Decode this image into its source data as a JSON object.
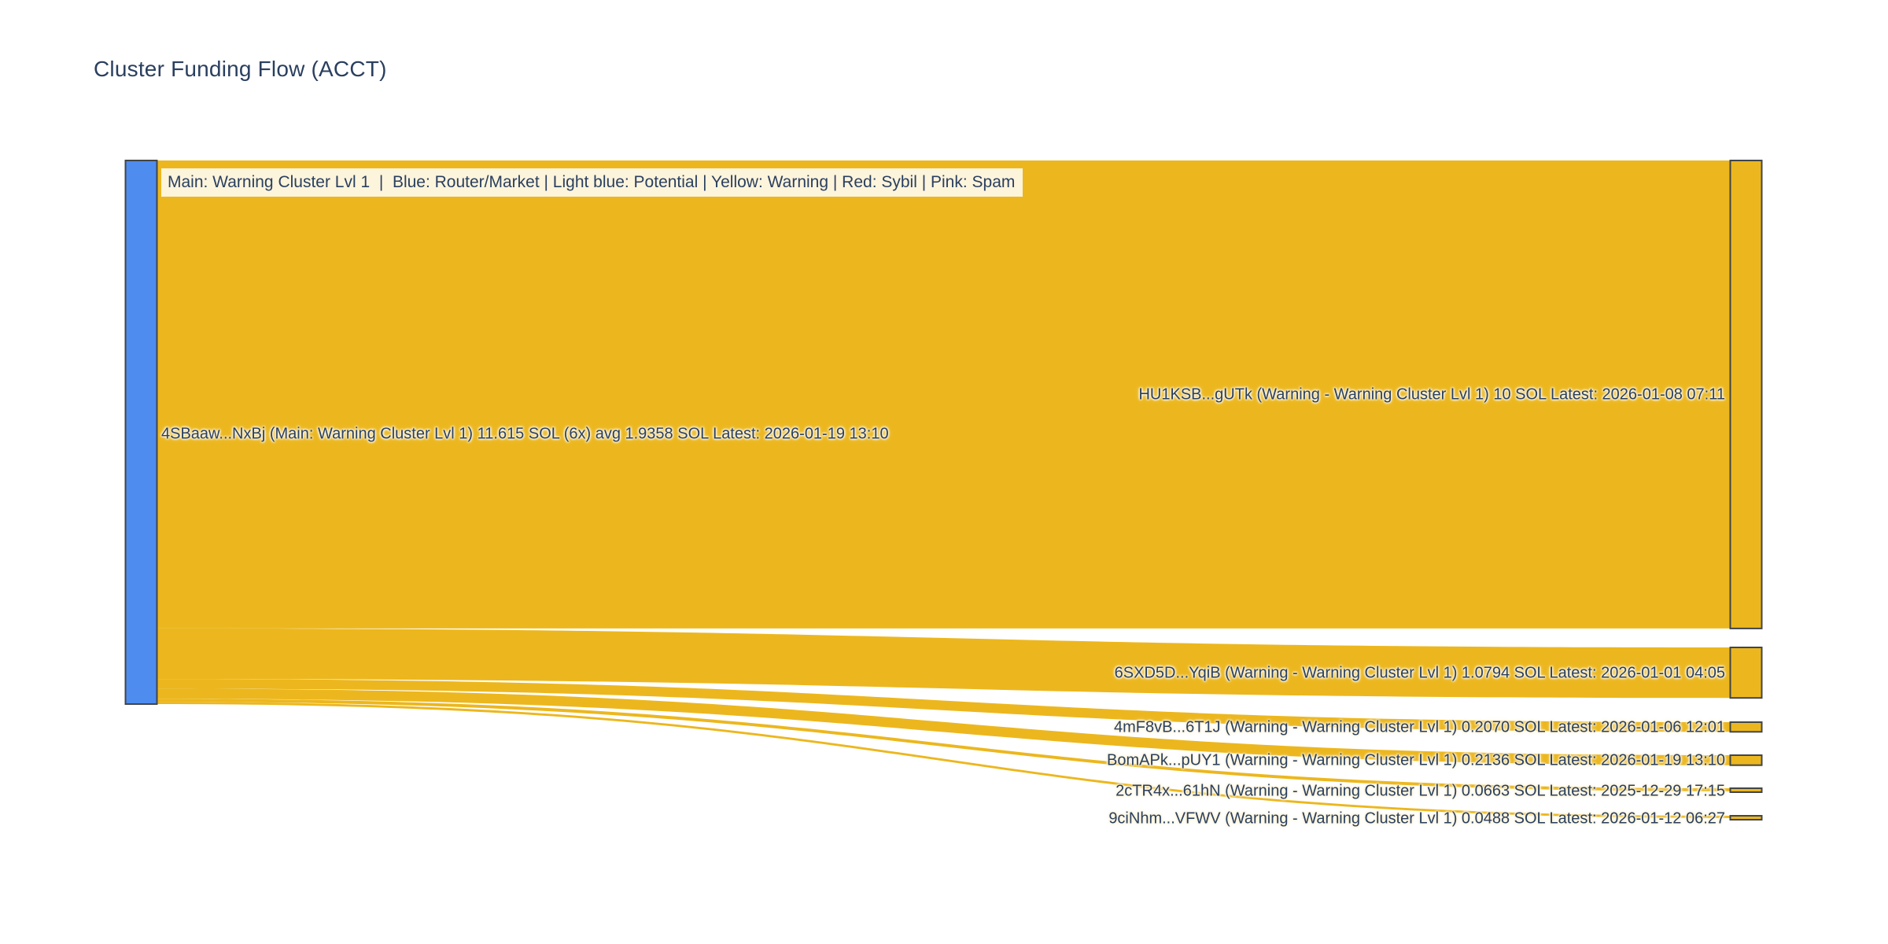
{
  "title": "Cluster Funding Flow (ACCT)",
  "legend": "Main: Warning Cluster Lvl 1  |  Blue: Router/Market | Light blue: Potential | Yellow: Warning | Red: Sybil | Pink: Spam",
  "colors": {
    "background": "#ffffff",
    "title_text": "#2a3f5f",
    "label_text": "#2a3f5f",
    "legend_background": "#fdf4dc",
    "flow_yellow": "#ecb71e",
    "node_warning_yellow": "#ecb71e",
    "node_main_blue": "#4e8cf0",
    "node_border": "#414549"
  },
  "chart_data": {
    "type": "sankey",
    "title": "Cluster Funding Flow (ACCT)",
    "unit": "SOL",
    "legend_note": "Main: Warning Cluster Lvl 1  |  Blue: Router/Market | Light blue: Potential | Yellow: Warning | Red: Sybil | Pink: Spam",
    "source": {
      "address_short": "4SBaaw...NxBj",
      "category": "Main: Warning Cluster Lvl 1",
      "total_sol": 11.615,
      "tx_count": "6x",
      "avg_sol": 1.9358,
      "latest": "2026-01-19 13:10",
      "label": "4SBaaw...NxBj (Main: Warning Cluster Lvl 1) 11.615 SOL (6x) avg 1.9358 SOL Latest: 2026-01-19 13:10"
    },
    "targets": [
      {
        "address_short": "HU1KSB...gUTk",
        "category": "Warning - Warning Cluster Lvl 1",
        "value_sol": 10,
        "latest": "2026-01-08 07:11",
        "label": "HU1KSB...gUTk (Warning - Warning Cluster Lvl 1) 10 SOL Latest: 2026-01-08 07:11"
      },
      {
        "address_short": "6SXD5D...YqiB",
        "category": "Warning - Warning Cluster Lvl 1",
        "value_sol": 1.0794,
        "latest": "2026-01-01 04:05",
        "label": "6SXD5D...YqiB (Warning - Warning Cluster Lvl 1) 1.0794 SOL Latest: 2026-01-01 04:05"
      },
      {
        "address_short": "4mF8vB...6T1J",
        "category": "Warning - Warning Cluster Lvl 1",
        "value_sol": 0.207,
        "latest": "2026-01-06 12:01",
        "label": "4mF8vB...6T1J (Warning - Warning Cluster Lvl 1) 0.2070 SOL Latest: 2026-01-06 12:01"
      },
      {
        "address_short": "BomAPk...pUY1",
        "category": "Warning - Warning Cluster Lvl 1",
        "value_sol": 0.2136,
        "latest": "2026-01-19 13:10",
        "label": "BomAPk...pUY1 (Warning - Warning Cluster Lvl 1) 0.2136 SOL Latest: 2026-01-19 13:10"
      },
      {
        "address_short": "2cTR4x...61hN",
        "category": "Warning - Warning Cluster Lvl 1",
        "value_sol": 0.0663,
        "latest": "2025-12-29 17:15",
        "label": "2cTR4x...61hN (Warning - Warning Cluster Lvl 1) 0.0663 SOL Latest: 2025-12-29 17:15"
      },
      {
        "address_short": "9ciNhm...VFWV",
        "category": "Warning - Warning Cluster Lvl 1",
        "value_sol": 0.0488,
        "latest": "2026-01-12 06:27",
        "label": "9ciNhm...VFWV (Warning - Warning Cluster Lvl 1) 0.0488 SOL Latest: 2026-01-12 06:27"
      }
    ]
  }
}
